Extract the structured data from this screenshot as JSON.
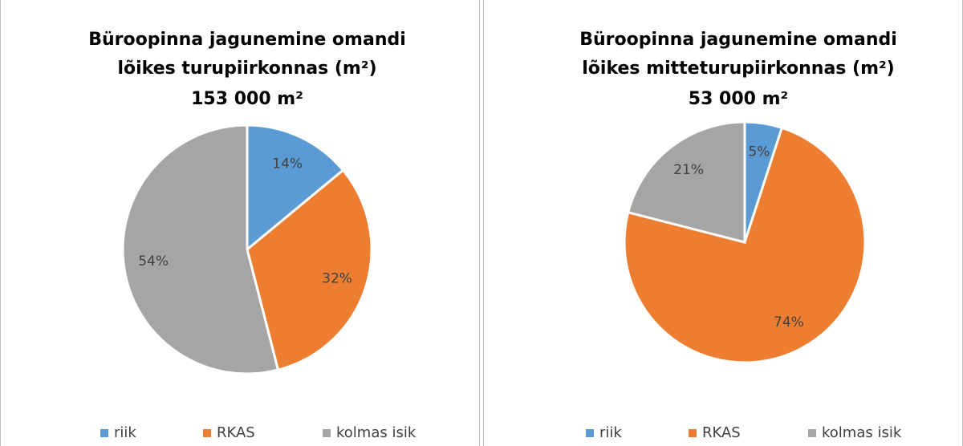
{
  "chart_data": [
    {
      "type": "pie",
      "title": [
        "Büroopinna jagunemine omandi",
        "lõikes turupiirkonnas (m²)"
      ],
      "subtitle": "153 000 m²",
      "categories": [
        "riik",
        "RKAS",
        "kolmas isik"
      ],
      "values": [
        14,
        32,
        54
      ],
      "value_labels": [
        "14%",
        "32%",
        "54%"
      ],
      "colors": [
        "#5b9bd5",
        "#ed7d31",
        "#a5a5a5"
      ],
      "legend": "bottom"
    },
    {
      "type": "pie",
      "title": [
        "Büroopinna jagunemine omandi",
        "lõikes mitteturupiirkonnas (m²)"
      ],
      "subtitle": "53 000 m²",
      "categories": [
        "riik",
        "RKAS",
        "kolmas isik"
      ],
      "values": [
        5,
        74,
        21
      ],
      "value_labels": [
        "5%",
        "74%",
        "21%"
      ],
      "colors": [
        "#5b9bd5",
        "#ed7d31",
        "#a5a5a5"
      ],
      "legend": "bottom"
    }
  ]
}
